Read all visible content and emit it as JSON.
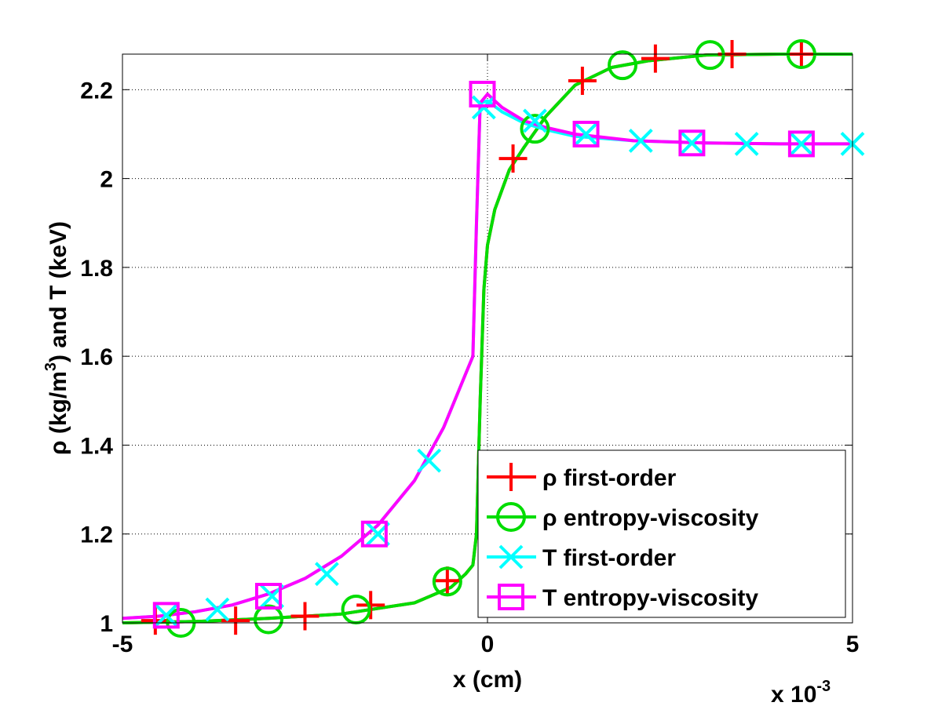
{
  "chart_data": {
    "type": "line",
    "xlabel": "x (cm)",
    "ylabel": {
      "prefix": "ρ (kg/m",
      "sup": "3",
      "suffix": ") and T (keV)"
    },
    "x_multiplier": {
      "prefix": "x 10",
      "sup": "-3"
    },
    "xlim": [
      -5,
      5
    ],
    "ylim": [
      1,
      2.28
    ],
    "x_ticks": [
      -5,
      0,
      5
    ],
    "x_tick_labels": [
      "-5",
      "0",
      "5"
    ],
    "y_ticks": [
      1,
      1.2,
      1.4,
      1.6,
      1.8,
      2,
      2.2
    ],
    "y_tick_labels": [
      "1",
      "1.2",
      "1.4",
      "1.6",
      "1.8",
      "2",
      "2.2"
    ],
    "grid": true,
    "legend_position": "bottom-right",
    "series": [
      {
        "name": "ρ first-order",
        "color": "#ff0000",
        "marker": "plus",
        "x": [
          -5,
          -4.0,
          -3.0,
          -2.0,
          -1.0,
          -0.5,
          -0.3,
          -0.2,
          -0.15,
          -0.1,
          -0.05,
          0,
          0.1,
          0.3,
          0.5,
          0.8,
          1.2,
          1.7,
          2.2,
          3.0,
          4.0,
          5
        ],
        "y": [
          1.0,
          1.003,
          1.01,
          1.02,
          1.045,
          1.08,
          1.11,
          1.13,
          1.2,
          1.5,
          1.75,
          1.85,
          1.93,
          2.02,
          2.07,
          2.14,
          2.21,
          2.25,
          2.265,
          2.278,
          2.28,
          2.28
        ],
        "marker_x": [
          -4.55,
          -3.45,
          -2.5,
          -1.6,
          -0.55,
          0.35,
          1.3,
          2.3,
          3.35,
          4.3
        ],
        "marker_y": [
          1.005,
          1.005,
          1.015,
          1.04,
          1.095,
          2.045,
          2.22,
          2.27,
          2.28,
          2.28
        ]
      },
      {
        "name": "ρ entropy-viscosity",
        "color": "#00dd00",
        "marker": "circle",
        "x": [
          -5,
          -4.0,
          -3.0,
          -2.0,
          -1.0,
          -0.5,
          -0.3,
          -0.2,
          -0.15,
          -0.1,
          -0.05,
          0,
          0.1,
          0.3,
          0.5,
          0.8,
          1.2,
          1.7,
          2.2,
          3.0,
          4.0,
          5
        ],
        "y": [
          1.0,
          1.003,
          1.01,
          1.02,
          1.045,
          1.08,
          1.11,
          1.13,
          1.2,
          1.5,
          1.75,
          1.85,
          1.93,
          2.02,
          2.07,
          2.14,
          2.21,
          2.25,
          2.265,
          2.278,
          2.28,
          2.28
        ],
        "marker_x": [
          -4.2,
          -3.0,
          -1.8,
          -0.55,
          0.65,
          1.85,
          3.05,
          4.3
        ],
        "marker_y": [
          1.0,
          1.008,
          1.03,
          1.093,
          2.112,
          2.255,
          2.278,
          2.28
        ]
      },
      {
        "name": "T first-order",
        "color": "#00ffff",
        "marker": "x",
        "x": [
          -5,
          -4.5,
          -4.0,
          -3.5,
          -3.0,
          -2.5,
          -2.0,
          -1.5,
          -1.0,
          -0.6,
          -0.3,
          -0.2,
          -0.15,
          -0.1,
          0,
          0.2,
          0.5,
          0.8,
          1.2,
          2.0,
          3.0,
          4.0,
          5
        ],
        "y": [
          1.01,
          1.015,
          1.025,
          1.04,
          1.065,
          1.1,
          1.15,
          1.22,
          1.32,
          1.44,
          1.56,
          1.6,
          1.9,
          2.17,
          2.175,
          2.15,
          2.125,
          2.11,
          2.095,
          2.085,
          2.08,
          2.078,
          2.078
        ],
        "marker_x": [
          -4.4,
          -3.7,
          -2.95,
          -2.2,
          -1.5,
          -0.8,
          -0.05,
          0.65,
          1.35,
          2.1,
          2.8,
          3.55,
          4.3,
          5.0
        ],
        "marker_y": [
          1.017,
          1.03,
          1.06,
          1.11,
          1.2,
          1.365,
          2.16,
          2.13,
          2.1,
          2.085,
          2.08,
          2.078,
          2.078,
          2.078
        ]
      },
      {
        "name": "T entropy-viscosity",
        "color": "#ff00ff",
        "marker": "square",
        "x": [
          -5,
          -4.5,
          -4.0,
          -3.5,
          -3.0,
          -2.5,
          -2.0,
          -1.5,
          -1.0,
          -0.6,
          -0.3,
          -0.2,
          -0.15,
          -0.1,
          0,
          0.2,
          0.5,
          0.8,
          1.2,
          2.0,
          3.0,
          4.0,
          5
        ],
        "y": [
          1.01,
          1.015,
          1.025,
          1.04,
          1.065,
          1.1,
          1.15,
          1.22,
          1.32,
          1.44,
          1.56,
          1.6,
          1.9,
          2.17,
          2.19,
          2.16,
          2.13,
          2.115,
          2.1,
          2.085,
          2.08,
          2.078,
          2.078
        ],
        "marker_x": [
          -4.4,
          -3.0,
          -1.55,
          -0.07,
          1.35,
          2.8,
          4.3
        ],
        "marker_y": [
          1.017,
          1.06,
          1.2,
          2.19,
          2.1,
          2.08,
          2.078
        ]
      }
    ]
  }
}
